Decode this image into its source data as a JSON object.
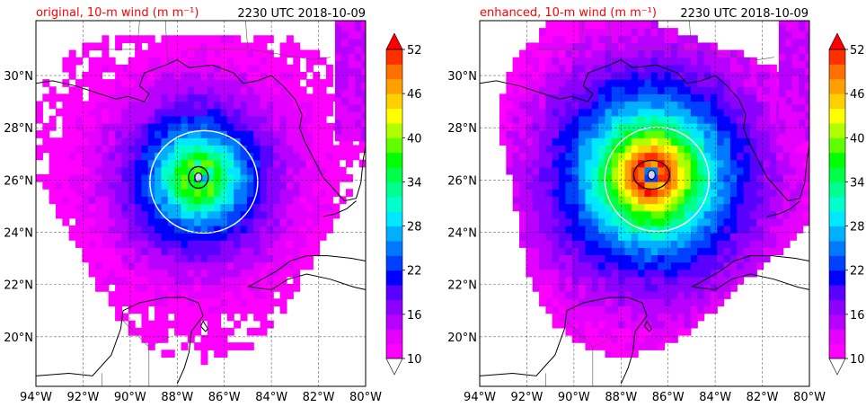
{
  "colors": {
    "title_left": "#ff0000",
    "title_right": "#000000",
    "land_outline": "#000000",
    "grid": "#000000",
    "contour_white": "#ffffff",
    "contour_black": "#000000"
  },
  "colorbar": {
    "levels": [
      10,
      12,
      14,
      16,
      18,
      20,
      22,
      24,
      26,
      28,
      30,
      32,
      34,
      36,
      38,
      40,
      42,
      44,
      46,
      48,
      50,
      52
    ],
    "colors": [
      "#ff00ff",
      "#e400ff",
      "#b800ff",
      "#8c00ff",
      "#5a00ff",
      "#0000ff",
      "#0040ff",
      "#0078ff",
      "#00b0ff",
      "#00e8ff",
      "#00ffcc",
      "#00ff90",
      "#00ff48",
      "#00ff00",
      "#60ff00",
      "#b0ff00",
      "#ffff00",
      "#ffd000",
      "#ffa000",
      "#ff7000",
      "#ff3000",
      "#ff0000"
    ],
    "tick_labels": [
      "10",
      "16",
      "22",
      "28",
      "34",
      "40",
      "46",
      "52"
    ],
    "extend": "both"
  },
  "chart_data": [
    {
      "type": "heatmap",
      "title_left": "original, 10-m wind (m m⁻¹)",
      "title_right": "2230 UTC 2018-10-09",
      "xlim": [
        -94,
        -80
      ],
      "ylim": [
        18.1,
        32.1
      ],
      "x_ticks": [
        -94,
        -92,
        -90,
        -88,
        -86,
        -84,
        -82,
        -80
      ],
      "x_tick_labels": [
        "94°W",
        "92°W",
        "90°W",
        "88°W",
        "86°W",
        "84°W",
        "82°W",
        "80°W"
      ],
      "y_ticks": [
        20,
        22,
        24,
        26,
        28,
        30
      ],
      "y_tick_labels": [
        "20°N",
        "22°N",
        "24°N",
        "26°N",
        "28°N",
        "30°N"
      ],
      "grid": true,
      "storm_center": [
        -87.1,
        26.1
      ],
      "max_wind": 38,
      "contour_white_level": 22,
      "contour_black_level": 34
    },
    {
      "type": "heatmap",
      "title_left": "enhanced, 10-m wind (m m⁻¹)",
      "title_right": "2230 UTC 2018-10-09",
      "xlim": [
        -94,
        -80
      ],
      "ylim": [
        18.1,
        32.1
      ],
      "x_ticks": [
        -94,
        -92,
        -90,
        -88,
        -86,
        -84,
        -82,
        -80
      ],
      "x_tick_labels": [
        "94°W",
        "92°W",
        "90°W",
        "88°W",
        "86°W",
        "84°W",
        "82°W",
        "80°W"
      ],
      "y_ticks": [
        20,
        22,
        24,
        26,
        28,
        30
      ],
      "y_tick_labels": [
        "20°N",
        "22°N",
        "24°N",
        "26°N",
        "28°N",
        "30°N"
      ],
      "grid": true,
      "storm_center": [
        -86.7,
        26.2
      ],
      "max_wind": 52,
      "contour_white_level": 22,
      "contour_black_level": 34
    }
  ]
}
